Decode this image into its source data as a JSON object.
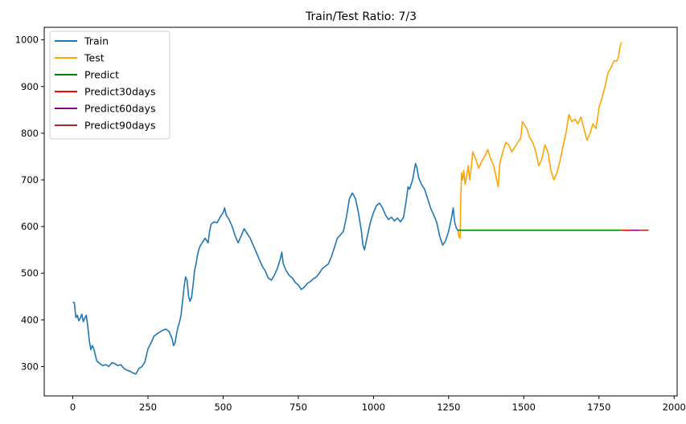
{
  "chart_data": {
    "type": "line",
    "title": "Train/Test Ratio: 7/3",
    "xlabel": "",
    "ylabel": "",
    "xlim": [
      -95,
      2010
    ],
    "ylim": [
      237,
      1027
    ],
    "xticks": [
      0,
      250,
      500,
      750,
      1000,
      1250,
      1500,
      1750,
      2000
    ],
    "yticks": [
      300,
      400,
      500,
      600,
      700,
      800,
      900,
      1000
    ],
    "grid": false,
    "legend_position": "top-left",
    "series": [
      {
        "name": "Train",
        "color": "#1f77b4",
        "points": [
          [
            0,
            438
          ],
          [
            5,
            437
          ],
          [
            10,
            405
          ],
          [
            15,
            410
          ],
          [
            20,
            398
          ],
          [
            25,
            404
          ],
          [
            30,
            412
          ],
          [
            35,
            396
          ],
          [
            40,
            404
          ],
          [
            45,
            410
          ],
          [
            50,
            385
          ],
          [
            55,
            355
          ],
          [
            60,
            336
          ],
          [
            65,
            345
          ],
          [
            70,
            338
          ],
          [
            75,
            324
          ],
          [
            80,
            312
          ],
          [
            90,
            306
          ],
          [
            100,
            302
          ],
          [
            110,
            304
          ],
          [
            120,
            300
          ],
          [
            130,
            308
          ],
          [
            140,
            306
          ],
          [
            150,
            302
          ],
          [
            160,
            304
          ],
          [
            170,
            296
          ],
          [
            180,
            292
          ],
          [
            190,
            290
          ],
          [
            200,
            286
          ],
          [
            210,
            284
          ],
          [
            215,
            290
          ],
          [
            220,
            296
          ],
          [
            230,
            300
          ],
          [
            240,
            310
          ],
          [
            250,
            338
          ],
          [
            260,
            350
          ],
          [
            270,
            365
          ],
          [
            280,
            370
          ],
          [
            290,
            374
          ],
          [
            300,
            378
          ],
          [
            310,
            380
          ],
          [
            320,
            375
          ],
          [
            330,
            360
          ],
          [
            335,
            345
          ],
          [
            340,
            350
          ],
          [
            345,
            370
          ],
          [
            350,
            385
          ],
          [
            355,
            395
          ],
          [
            360,
            410
          ],
          [
            370,
            470
          ],
          [
            375,
            492
          ],
          [
            380,
            485
          ],
          [
            385,
            450
          ],
          [
            390,
            440
          ],
          [
            395,
            448
          ],
          [
            400,
            475
          ],
          [
            405,
            505
          ],
          [
            410,
            520
          ],
          [
            415,
            540
          ],
          [
            420,
            552
          ],
          [
            425,
            560
          ],
          [
            430,
            565
          ],
          [
            435,
            570
          ],
          [
            440,
            575
          ],
          [
            445,
            570
          ],
          [
            450,
            565
          ],
          [
            455,
            590
          ],
          [
            460,
            605
          ],
          [
            470,
            610
          ],
          [
            480,
            608
          ],
          [
            490,
            620
          ],
          [
            500,
            630
          ],
          [
            505,
            640
          ],
          [
            510,
            625
          ],
          [
            520,
            615
          ],
          [
            530,
            600
          ],
          [
            540,
            580
          ],
          [
            550,
            565
          ],
          [
            560,
            580
          ],
          [
            570,
            595
          ],
          [
            580,
            585
          ],
          [
            590,
            575
          ],
          [
            600,
            560
          ],
          [
            610,
            545
          ],
          [
            620,
            530
          ],
          [
            630,
            515
          ],
          [
            640,
            505
          ],
          [
            650,
            490
          ],
          [
            660,
            485
          ],
          [
            670,
            495
          ],
          [
            680,
            510
          ],
          [
            690,
            530
          ],
          [
            695,
            545
          ],
          [
            700,
            520
          ],
          [
            710,
            505
          ],
          [
            720,
            495
          ],
          [
            730,
            490
          ],
          [
            740,
            480
          ],
          [
            750,
            475
          ],
          [
            760,
            465
          ],
          [
            770,
            470
          ],
          [
            780,
            478
          ],
          [
            790,
            482
          ],
          [
            800,
            488
          ],
          [
            810,
            492
          ],
          [
            820,
            500
          ],
          [
            830,
            510
          ],
          [
            840,
            515
          ],
          [
            850,
            520
          ],
          [
            860,
            535
          ],
          [
            870,
            555
          ],
          [
            880,
            575
          ],
          [
            890,
            582
          ],
          [
            900,
            590
          ],
          [
            910,
            620
          ],
          [
            920,
            660
          ],
          [
            930,
            672
          ],
          [
            940,
            660
          ],
          [
            950,
            630
          ],
          [
            960,
            590
          ],
          [
            965,
            560
          ],
          [
            970,
            550
          ],
          [
            980,
            580
          ],
          [
            990,
            610
          ],
          [
            1000,
            630
          ],
          [
            1010,
            645
          ],
          [
            1020,
            650
          ],
          [
            1030,
            640
          ],
          [
            1040,
            625
          ],
          [
            1050,
            615
          ],
          [
            1060,
            620
          ],
          [
            1070,
            612
          ],
          [
            1080,
            618
          ],
          [
            1090,
            610
          ],
          [
            1100,
            620
          ],
          [
            1110,
            660
          ],
          [
            1115,
            685
          ],
          [
            1120,
            680
          ],
          [
            1130,
            700
          ],
          [
            1140,
            735
          ],
          [
            1145,
            725
          ],
          [
            1150,
            705
          ],
          [
            1160,
            690
          ],
          [
            1170,
            680
          ],
          [
            1180,
            660
          ],
          [
            1190,
            640
          ],
          [
            1200,
            625
          ],
          [
            1210,
            610
          ],
          [
            1220,
            580
          ],
          [
            1230,
            560
          ],
          [
            1240,
            570
          ],
          [
            1250,
            590
          ],
          [
            1260,
            620
          ],
          [
            1265,
            640
          ],
          [
            1270,
            610
          ],
          [
            1275,
            598
          ],
          [
            1280,
            592
          ]
        ]
      },
      {
        "name": "Test",
        "color": "#ffa500",
        "points": [
          [
            1280,
            592
          ],
          [
            1285,
            578
          ],
          [
            1288,
            575
          ],
          [
            1290,
            650
          ],
          [
            1293,
            715
          ],
          [
            1297,
            700
          ],
          [
            1300,
            720
          ],
          [
            1305,
            690
          ],
          [
            1310,
            710
          ],
          [
            1315,
            730
          ],
          [
            1320,
            700
          ],
          [
            1325,
            725
          ],
          [
            1330,
            760
          ],
          [
            1340,
            745
          ],
          [
            1350,
            725
          ],
          [
            1360,
            740
          ],
          [
            1370,
            750
          ],
          [
            1380,
            765
          ],
          [
            1390,
            745
          ],
          [
            1400,
            730
          ],
          [
            1410,
            700
          ],
          [
            1415,
            685
          ],
          [
            1420,
            735
          ],
          [
            1430,
            760
          ],
          [
            1440,
            780
          ],
          [
            1450,
            775
          ],
          [
            1460,
            760
          ],
          [
            1470,
            770
          ],
          [
            1480,
            780
          ],
          [
            1490,
            790
          ],
          [
            1495,
            825
          ],
          [
            1500,
            820
          ],
          [
            1510,
            810
          ],
          [
            1520,
            790
          ],
          [
            1530,
            780
          ],
          [
            1540,
            760
          ],
          [
            1550,
            730
          ],
          [
            1560,
            745
          ],
          [
            1570,
            775
          ],
          [
            1580,
            760
          ],
          [
            1590,
            720
          ],
          [
            1600,
            700
          ],
          [
            1610,
            715
          ],
          [
            1620,
            740
          ],
          [
            1630,
            770
          ],
          [
            1640,
            800
          ],
          [
            1650,
            840
          ],
          [
            1660,
            825
          ],
          [
            1670,
            830
          ],
          [
            1680,
            820
          ],
          [
            1690,
            835
          ],
          [
            1700,
            810
          ],
          [
            1710,
            785
          ],
          [
            1720,
            800
          ],
          [
            1730,
            820
          ],
          [
            1740,
            810
          ],
          [
            1745,
            830
          ],
          [
            1750,
            855
          ],
          [
            1760,
            875
          ],
          [
            1770,
            900
          ],
          [
            1780,
            930
          ],
          [
            1790,
            940
          ],
          [
            1800,
            955
          ],
          [
            1810,
            955
          ],
          [
            1815,
            965
          ],
          [
            1820,
            985
          ],
          [
            1825,
            995
          ]
        ]
      },
      {
        "name": "Predict",
        "color": "#008000",
        "points": [
          [
            1280,
            592
          ],
          [
            1825,
            592
          ]
        ]
      },
      {
        "name": "Predict30days",
        "color": "#ff0000",
        "points": [
          [
            1825,
            592
          ],
          [
            1855,
            592
          ]
        ]
      },
      {
        "name": "Predict60days",
        "color": "#800080",
        "points": [
          [
            1855,
            592
          ],
          [
            1885,
            592
          ]
        ]
      },
      {
        "name": "Predict90days",
        "color": "#a52a2a",
        "points": [
          [
            1885,
            592
          ],
          [
            1915,
            592
          ]
        ]
      }
    ]
  }
}
